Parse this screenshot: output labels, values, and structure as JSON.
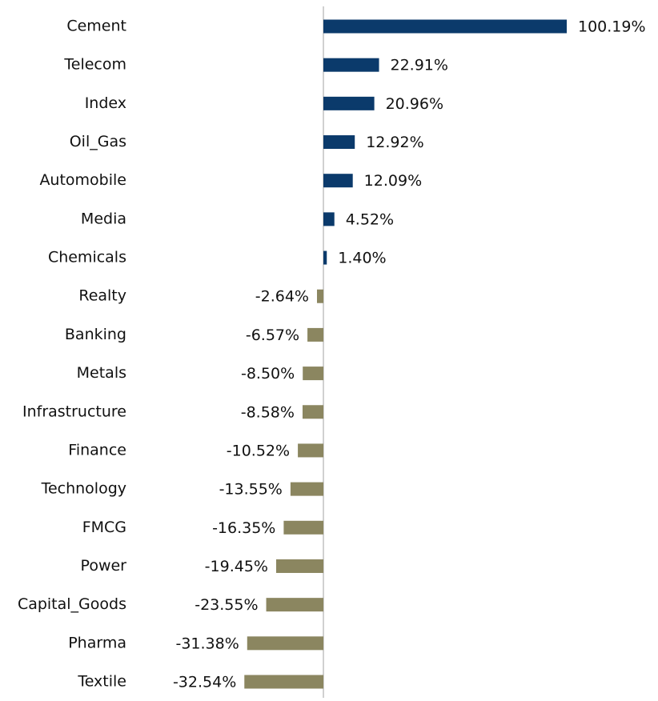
{
  "chart_data": {
    "type": "barh",
    "categories": [
      "Cement",
      "Telecom",
      "Index",
      "Oil_Gas",
      "Automobile",
      "Media",
      "Chemicals",
      "Realty",
      "Banking",
      "Metals",
      "Infrastructure",
      "Finance",
      "Technology",
      "FMCG",
      "Power",
      "Capital_Goods",
      "Pharma",
      "Textile"
    ],
    "values": [
      100.19,
      22.91,
      20.96,
      12.92,
      12.09,
      4.52,
      1.4,
      -2.64,
      -6.57,
      -8.5,
      -8.58,
      -10.52,
      -13.55,
      -16.35,
      -19.45,
      -23.55,
      -31.38,
      -32.54
    ],
    "value_labels": [
      "100.19%",
      "22.91%",
      "20.96%",
      "12.92%",
      "12.09%",
      "4.52%",
      "1.40%",
      "-2.64%",
      "-6.57%",
      "-8.50%",
      "-8.58%",
      "-10.52%",
      "-13.55%",
      "-16.35%",
      "-19.45%",
      "-23.55%",
      "-31.38%",
      "-32.54%"
    ],
    "positive_color": "#0b3a6b",
    "negative_color": "#8b8660"
  }
}
